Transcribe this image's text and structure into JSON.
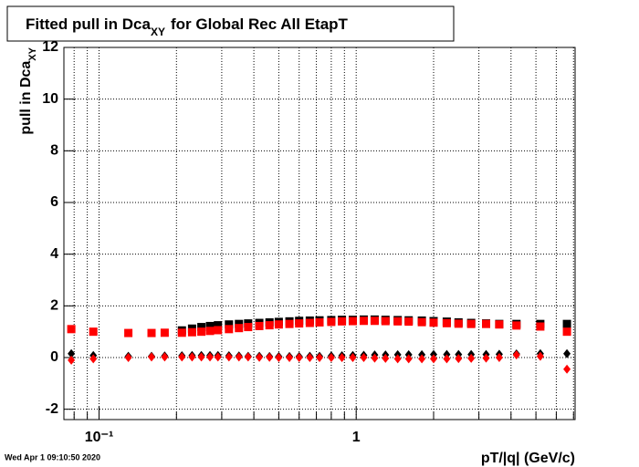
{
  "chart_data": {
    "type": "scatter",
    "title": "Fitted pull in Dca",
    "title_sub": "XY",
    "title_rest": "for Global Rec All EtapT",
    "ylabel": "pull in Dca",
    "ylabel_sub": "XY",
    "xlabel": "pT/|q| (GeV/c)",
    "timestamp": "Wed Apr  1 09:10:50 2020",
    "xscale": "log",
    "grid": true,
    "xlim": [
      0.073,
      7.1
    ],
    "ylim": [
      -2.4,
      12
    ],
    "xticks": [
      {
        "value": 0.1,
        "label": "10⁻¹"
      },
      1
    ],
    "xminorticks": [
      0.08,
      0.09,
      0.2,
      0.3,
      0.4,
      0.5,
      0.6,
      0.7,
      0.8,
      0.9,
      2,
      3,
      4,
      5,
      6,
      7
    ],
    "yticks": [
      -2,
      0,
      2,
      4,
      6,
      8,
      10,
      12
    ],
    "series": [
      {
        "marker": "square",
        "color": "#000000",
        "x": [
          0.21,
          0.23,
          0.25,
          0.27,
          0.29,
          0.32,
          0.35,
          0.38,
          0.42,
          0.46,
          0.5,
          0.55,
          0.6,
          0.66,
          0.72,
          0.8,
          0.88,
          0.97,
          1.07,
          1.18,
          1.3,
          1.45,
          1.6,
          1.8,
          2.0,
          2.25,
          2.5,
          2.8,
          3.2,
          3.6,
          4.2,
          5.2,
          6.6
        ],
        "values": [
          1.05,
          1.12,
          1.18,
          1.22,
          1.25,
          1.28,
          1.3,
          1.32,
          1.34,
          1.36,
          1.38,
          1.4,
          1.42,
          1.43,
          1.44,
          1.45,
          1.46,
          1.46,
          1.47,
          1.47,
          1.46,
          1.45,
          1.44,
          1.43,
          1.41,
          1.39,
          1.36,
          1.34,
          1.32,
          1.3,
          1.3,
          1.3,
          1.3
        ]
      },
      {
        "marker": "square",
        "color": "#ff0000",
        "x": [
          0.078,
          0.095,
          0.13,
          0.16,
          0.18,
          0.21,
          0.23,
          0.25,
          0.27,
          0.29,
          0.32,
          0.35,
          0.38,
          0.42,
          0.46,
          0.5,
          0.55,
          0.6,
          0.66,
          0.72,
          0.8,
          0.88,
          0.97,
          1.07,
          1.18,
          1.3,
          1.45,
          1.6,
          1.8,
          2.0,
          2.25,
          2.5,
          2.8,
          3.2,
          3.6,
          4.2,
          5.2,
          6.6
        ],
        "values": [
          1.1,
          1.0,
          0.95,
          0.95,
          0.96,
          0.96,
          0.98,
          1.0,
          1.03,
          1.06,
          1.1,
          1.14,
          1.18,
          1.22,
          1.25,
          1.28,
          1.3,
          1.32,
          1.34,
          1.36,
          1.38,
          1.4,
          1.41,
          1.42,
          1.42,
          1.41,
          1.4,
          1.39,
          1.37,
          1.35,
          1.33,
          1.31,
          1.3,
          1.3,
          1.28,
          1.24,
          1.2,
          1.0
        ]
      },
      {
        "marker": "diamond",
        "color": "#000000",
        "x": [
          0.078,
          0.095,
          0.13,
          0.16,
          0.18,
          0.21,
          0.23,
          0.25,
          0.27,
          0.29,
          0.32,
          0.35,
          0.38,
          0.42,
          0.46,
          0.5,
          0.55,
          0.6,
          0.66,
          0.72,
          0.8,
          0.88,
          0.97,
          1.07,
          1.18,
          1.3,
          1.45,
          1.6,
          1.8,
          2.0,
          2.25,
          2.5,
          2.8,
          3.2,
          3.6,
          4.2,
          5.2,
          6.6
        ],
        "values": [
          0.15,
          0.08,
          0.05,
          0.05,
          0.06,
          0.07,
          0.08,
          0.08,
          0.08,
          0.08,
          0.07,
          0.06,
          0.05,
          0.05,
          0.04,
          0.04,
          0.04,
          0.04,
          0.05,
          0.05,
          0.06,
          0.07,
          0.08,
          0.09,
          0.1,
          0.1,
          0.11,
          0.11,
          0.11,
          0.12,
          0.12,
          0.12,
          0.12,
          0.12,
          0.13,
          0.14,
          0.15,
          0.15
        ]
      },
      {
        "marker": "diamond",
        "color": "#ff0000",
        "x": [
          0.078,
          0.095,
          0.13,
          0.16,
          0.18,
          0.21,
          0.23,
          0.25,
          0.27,
          0.29,
          0.32,
          0.35,
          0.38,
          0.42,
          0.46,
          0.5,
          0.55,
          0.6,
          0.66,
          0.72,
          0.8,
          0.88,
          0.97,
          1.07,
          1.18,
          1.3,
          1.45,
          1.6,
          1.8,
          2.0,
          2.25,
          2.5,
          2.8,
          3.2,
          3.6,
          4.2,
          5.2,
          6.6
        ],
        "values": [
          -0.1,
          -0.05,
          0.0,
          0.02,
          0.02,
          0.02,
          0.02,
          0.02,
          0.02,
          0.02,
          0.02,
          0.02,
          0.02,
          0.01,
          0.01,
          0.0,
          0.0,
          0.0,
          0.0,
          0.0,
          0.0,
          0.0,
          0.0,
          0.0,
          -0.02,
          -0.03,
          -0.05,
          -0.05,
          -0.05,
          -0.05,
          -0.05,
          -0.04,
          -0.03,
          -0.02,
          0.0,
          0.1,
          0.05,
          -0.45
        ]
      }
    ]
  }
}
